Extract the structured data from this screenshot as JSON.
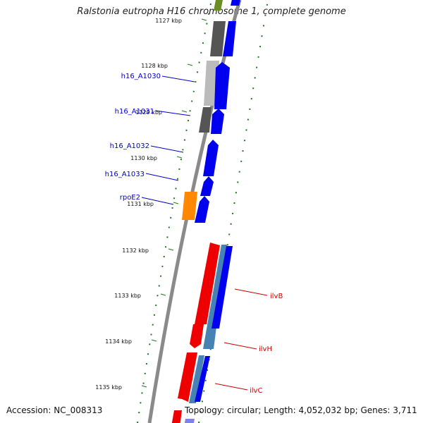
{
  "title": "Ralstonia eutropha H16 chromosome 1, complete genome",
  "footer": {
    "accession": "Accession: NC_008313",
    "summary": "Topology: circular; Length: 4,052,032 bp; Genes: 3,711"
  },
  "ruler_ticks": [
    {
      "label": "1127 kbp",
      "kbp": 1127
    },
    {
      "label": "1128 kbp",
      "kbp": 1128
    },
    {
      "label": "1129 kbp",
      "kbp": 1129
    },
    {
      "label": "1130 kbp",
      "kbp": 1130
    },
    {
      "label": "1131 kbp",
      "kbp": 1131
    },
    {
      "label": "1132 kbp",
      "kbp": 1132
    },
    {
      "label": "1133 kbp",
      "kbp": 1133
    },
    {
      "label": "1134 kbp",
      "kbp": 1134
    },
    {
      "label": "1135 kbp",
      "kbp": 1135
    }
  ],
  "gene_labels": [
    {
      "name": "h16_A1030",
      "color": "#0000cc",
      "side": "left"
    },
    {
      "name": "h16_A1031",
      "color": "#0000cc",
      "side": "left"
    },
    {
      "name": "h16_A1032",
      "color": "#0000cc",
      "side": "left"
    },
    {
      "name": "h16_A1033",
      "color": "#0000cc",
      "side": "left"
    },
    {
      "name": "rpoE2",
      "color": "#0000cc",
      "side": "left"
    },
    {
      "name": "ilvB",
      "color": "#cc0000",
      "side": "right"
    },
    {
      "name": "ilvH",
      "color": "#cc0000",
      "side": "right"
    },
    {
      "name": "ilvC",
      "color": "#cc0000",
      "side": "right"
    }
  ],
  "colors": {
    "backbone": "#8a8a8a",
    "tick_marks": "#1a7a1a",
    "cds_forward": "#0000ee",
    "cds_reverse": "#ee0000",
    "rna_steelblue": "#4682b4",
    "gray_dark": "#555555",
    "gray_light": "#bbbbbb",
    "orange": "#ff8800",
    "olive": "#6b8e23"
  }
}
